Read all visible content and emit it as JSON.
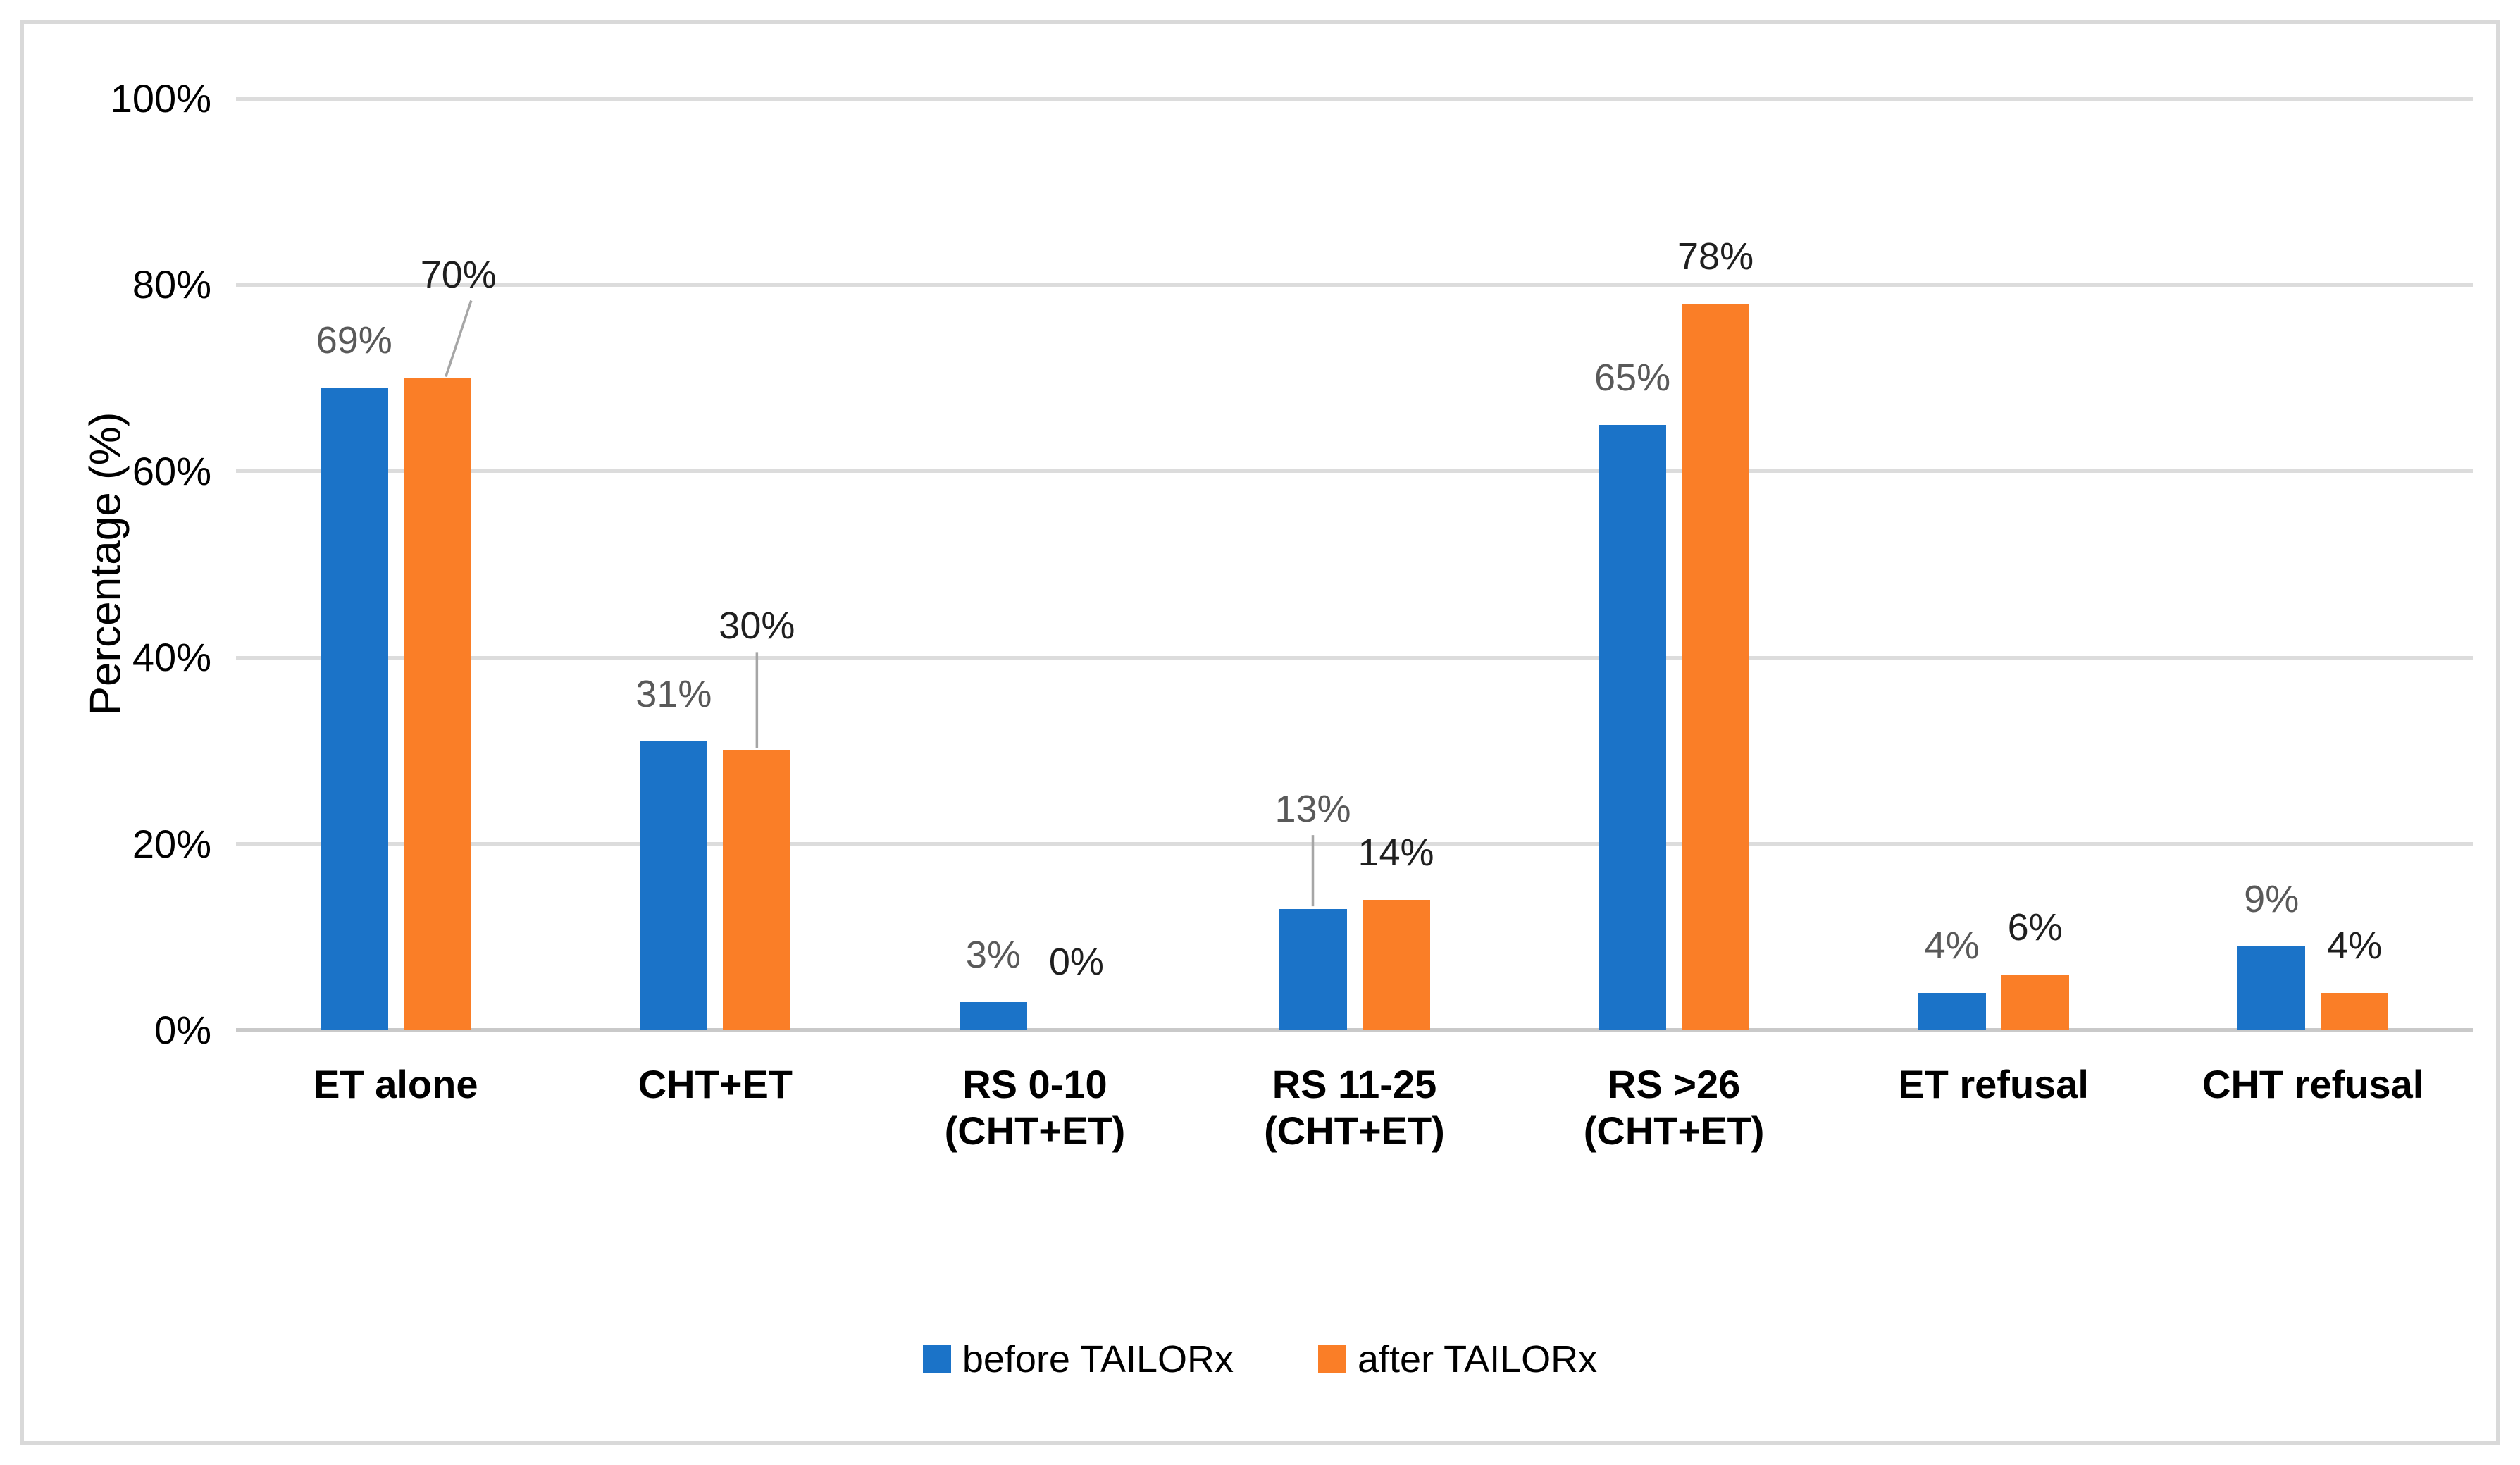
{
  "figure": {
    "background": "#FFFFFF",
    "border_color": "#D9D9D9"
  },
  "chart_data": {
    "type": "bar",
    "ylabel": "Percentage (%)",
    "ylim": [
      0,
      100
    ],
    "ytick_step": 20,
    "yticks": [
      "0%",
      "20%",
      "40%",
      "60%",
      "80%",
      "100%"
    ],
    "grid": true,
    "legend_position": "bottom",
    "categories": [
      "ET alone",
      "CHT+ET",
      "RS 0-10 (CHT+ET)",
      "RS 11-25 (CHT+ET)",
      "RS >26 (CHT+ET)",
      "ET refusal",
      "CHT refusal"
    ],
    "category_lines": [
      [
        "ET alone"
      ],
      [
        "CHT+ET"
      ],
      [
        "RS 0-10",
        "(CHT+ET)"
      ],
      [
        "RS 11-25",
        "(CHT+ET)"
      ],
      [
        "RS >26",
        "(CHT+ET)"
      ],
      [
        "ET refusal"
      ],
      [
        "CHT refusal"
      ]
    ],
    "series": [
      {
        "name": "before TAILORx",
        "color": "#1B73C8",
        "label_color": "#595959",
        "values": [
          69,
          31,
          3,
          13,
          65,
          4,
          9
        ],
        "labels": [
          "69%",
          "31%",
          "3%",
          "13%",
          "65%",
          "4%",
          "9%"
        ]
      },
      {
        "name": "after TAILORx",
        "color": "#FA7E27",
        "label_color": "#1F1F1F",
        "values": [
          70,
          30,
          0,
          14,
          78,
          6,
          4
        ],
        "labels": [
          "70%",
          "30%",
          "0%",
          "14%",
          "78%",
          "6%",
          "4%"
        ]
      }
    ],
    "callouts": [
      {
        "series": 1,
        "index": 0,
        "raise": 120,
        "dx": 30,
        "leader": "diagonal"
      },
      {
        "series": 1,
        "index": 1,
        "raise": 150,
        "dx": 0,
        "leader": "vertical"
      },
      {
        "series": 0,
        "index": 3,
        "raise": 115,
        "dx": 0,
        "leader": "vertical"
      },
      {
        "series": 1,
        "index": 2,
        "raise": 70,
        "dx": 0,
        "leader": "none"
      }
    ],
    "gridline_color": "#DCDCDC",
    "axis_color": "#C9C9C9",
    "leader_color": "#A6A6A6"
  }
}
